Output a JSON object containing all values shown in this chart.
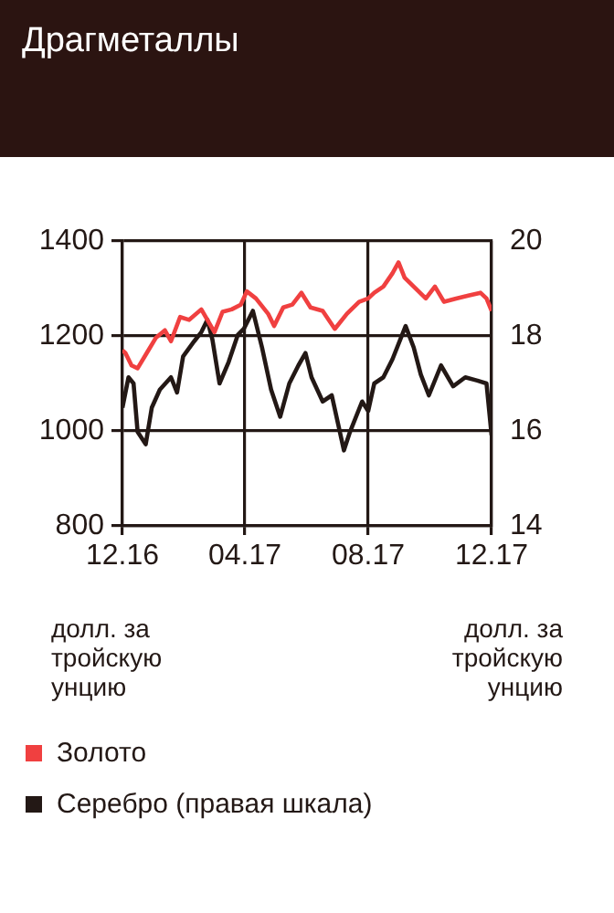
{
  "chart_data": {
    "type": "line",
    "title": "Драгметаллы",
    "ylabel": "долл. за тройскую унцию",
    "y2label": "долл. за тройскую унцию",
    "xlim": [
      "2016-12-01",
      "2017-12-01"
    ],
    "xticks": [
      {
        "value": "2016-12-01",
        "label": "12.16"
      },
      {
        "value": "2017-04-01",
        "label": "04.17"
      },
      {
        "value": "2017-08-01",
        "label": "08.17"
      },
      {
        "value": "2017-12-01",
        "label": "12.17"
      }
    ],
    "ylim": [
      800,
      1400
    ],
    "yticks": [
      800,
      1000,
      1200,
      1400
    ],
    "y2lim": [
      14,
      20
    ],
    "y2ticks": [
      14,
      16,
      18,
      20
    ],
    "grid": true,
    "legend": "bottom",
    "series": [
      {
        "name": "Золото",
        "color": "#f04040",
        "x": [
          "2016-12-01",
          "2016-12-04",
          "2016-12-10",
          "2016-12-16",
          "2016-12-25",
          "2017-01-03",
          "2017-01-12",
          "2017-01-18",
          "2017-01-27",
          "2017-02-05",
          "2017-02-17",
          "2017-02-23",
          "2017-03-02",
          "2017-03-10",
          "2017-03-19",
          "2017-03-28",
          "2017-04-03",
          "2017-04-12",
          "2017-04-24",
          "2017-04-30",
          "2017-05-09",
          "2017-05-18",
          "2017-05-27",
          "2017-06-05",
          "2017-06-17",
          "2017-06-29",
          "2017-07-11",
          "2017-07-23",
          "2017-08-01",
          "2017-08-07",
          "2017-08-16",
          "2017-08-25",
          "2017-08-31",
          "2017-09-06",
          "2017-09-15",
          "2017-09-27",
          "2017-10-06",
          "2017-10-15",
          "2017-10-27",
          "2017-11-08",
          "2017-11-20",
          "2017-11-26",
          "2017-12-01"
        ],
        "values": [
          1170,
          1164,
          1138,
          1132,
          1164,
          1196,
          1212,
          1189,
          1240,
          1234,
          1256,
          1234,
          1208,
          1251,
          1256,
          1266,
          1294,
          1279,
          1247,
          1221,
          1260,
          1266,
          1291,
          1260,
          1253,
          1215,
          1247,
          1272,
          1279,
          1291,
          1304,
          1332,
          1355,
          1323,
          1304,
          1279,
          1304,
          1272,
          1279,
          1285,
          1291,
          1279,
          1253
        ]
      },
      {
        "name": "Серебро (правая шкала)",
        "color": "#231815",
        "axis": "y2",
        "x": [
          "2016-12-01",
          "2016-12-07",
          "2016-12-12",
          "2016-12-16",
          "2016-12-24",
          "2016-12-30",
          "2017-01-07",
          "2017-01-18",
          "2017-01-24",
          "2017-01-30",
          "2017-02-10",
          "2017-02-17",
          "2017-02-23",
          "2017-02-28",
          "2017-03-07",
          "2017-03-16",
          "2017-03-25",
          "2017-03-31",
          "2017-04-09",
          "2017-04-18",
          "2017-04-27",
          "2017-05-06",
          "2017-05-15",
          "2017-05-24",
          "2017-05-31",
          "2017-06-06",
          "2017-06-17",
          "2017-06-26",
          "2017-07-08",
          "2017-07-14",
          "2017-07-26",
          "2017-08-01",
          "2017-08-07",
          "2017-08-16",
          "2017-08-25",
          "2017-09-07",
          "2017-09-15",
          "2017-09-22",
          "2017-09-30",
          "2017-10-12",
          "2017-10-24",
          "2017-11-05",
          "2017-11-17",
          "2017-11-26",
          "2017-12-01"
        ],
        "values": [
          16.49,
          17.13,
          17.0,
          15.98,
          15.72,
          16.49,
          16.87,
          17.13,
          16.81,
          17.57,
          17.89,
          18.08,
          18.34,
          17.92,
          17.0,
          17.45,
          18.02,
          18.15,
          18.53,
          17.76,
          16.87,
          16.3,
          17.0,
          17.38,
          17.64,
          17.13,
          16.62,
          16.75,
          15.59,
          15.98,
          16.62,
          16.42,
          17.0,
          17.13,
          17.51,
          18.21,
          17.76,
          17.19,
          16.75,
          17.38,
          16.94,
          17.13,
          17.06,
          17.0,
          15.91
        ]
      }
    ]
  }
}
